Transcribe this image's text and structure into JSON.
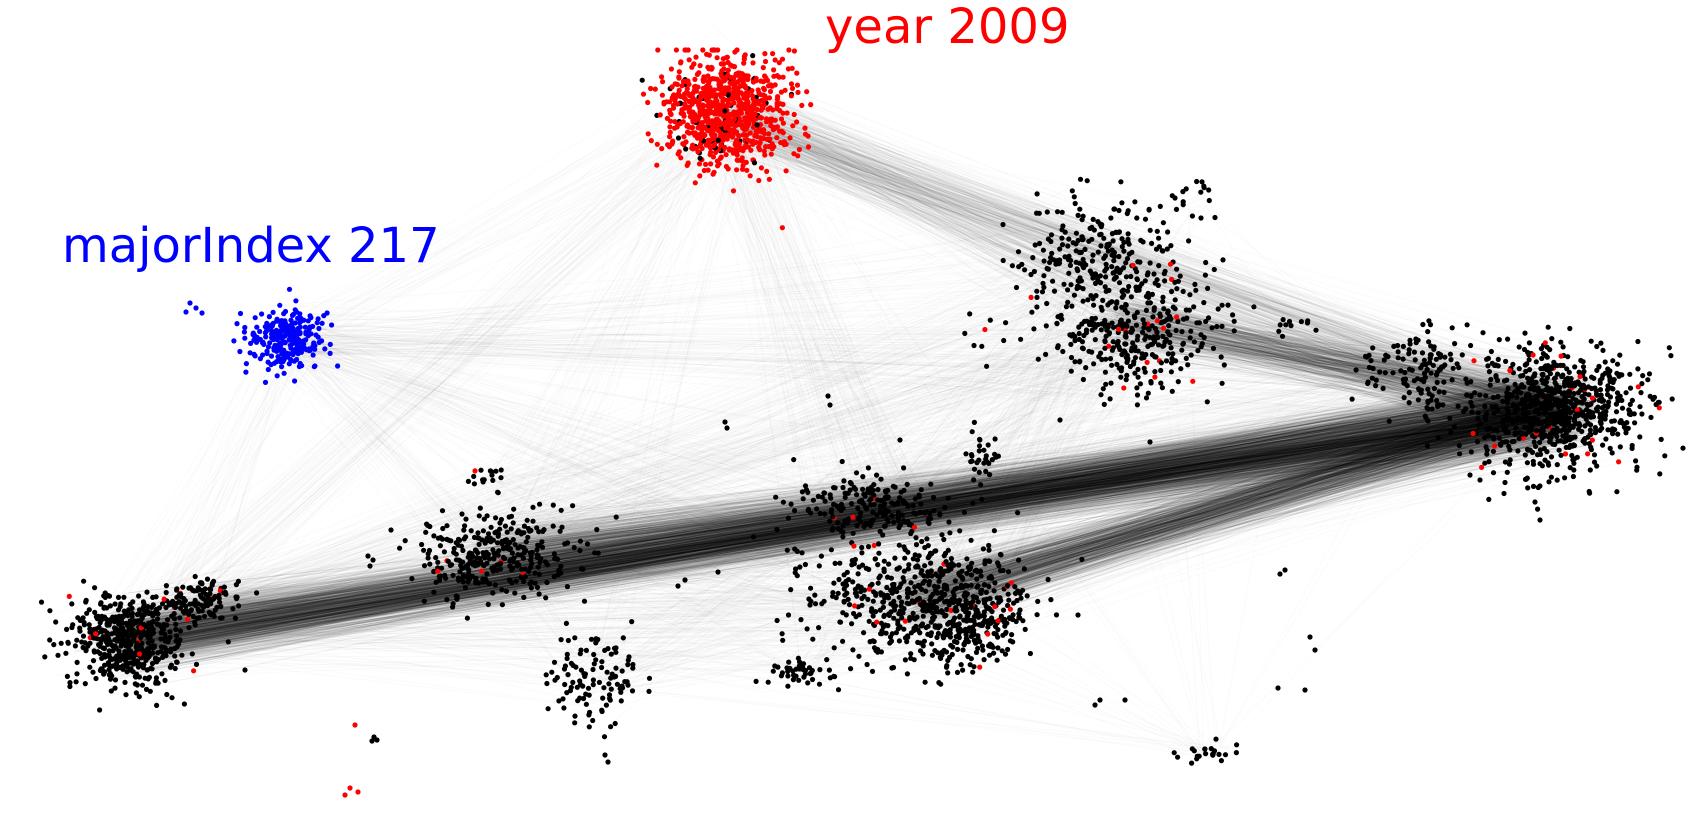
{
  "labels": {
    "year": "year 2009",
    "major": "majorIndex 217"
  },
  "colors": {
    "year": "#ff0000",
    "major": "#0000ff",
    "other": "#000000",
    "edge": "#000000",
    "background": "#ffffff"
  }
}
